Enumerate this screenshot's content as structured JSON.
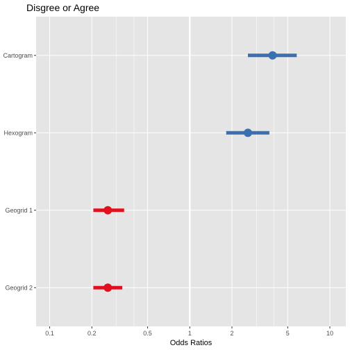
{
  "chart_data": {
    "type": "scatter",
    "title": "Disgree or Agree",
    "xlabel": "Odds Ratios",
    "ylabel": "",
    "x_scale": "log10",
    "xlim": [
      0.08,
      13
    ],
    "x_ticks": [
      {
        "value": 0.1,
        "label": "0.1"
      },
      {
        "value": 0.2,
        "label": "0.2"
      },
      {
        "value": 0.5,
        "label": "0.5"
      },
      {
        "value": 1,
        "label": "1"
      },
      {
        "value": 2,
        "label": "2"
      },
      {
        "value": 5,
        "label": "5"
      },
      {
        "value": 10,
        "label": "10"
      }
    ],
    "x_minor_ticks": [
      0.3,
      0.4,
      3,
      4
    ],
    "reference_line": 1,
    "grid": true,
    "categories": [
      "Cartogram",
      "Hexogram",
      "Geogrid 1",
      "Geogrid 2"
    ],
    "points": [
      {
        "category": "Cartogram",
        "estimate": 3.9,
        "lower": 2.6,
        "upper": 5.8,
        "color": "#3a6fb0"
      },
      {
        "category": "Hexogram",
        "estimate": 2.6,
        "lower": 1.82,
        "upper": 3.7,
        "color": "#3a6fb0"
      },
      {
        "category": "Geogrid 1",
        "estimate": 0.26,
        "lower": 0.205,
        "upper": 0.34,
        "color": "#e0101e"
      },
      {
        "category": "Geogrid 2",
        "estimate": 0.26,
        "lower": 0.205,
        "upper": 0.33,
        "color": "#e0101e"
      }
    ],
    "colors": {
      "panel": "#e5e5e5",
      "grid": "#ffffff",
      "positive": "#3a6fb0",
      "negative": "#e0101e"
    }
  }
}
